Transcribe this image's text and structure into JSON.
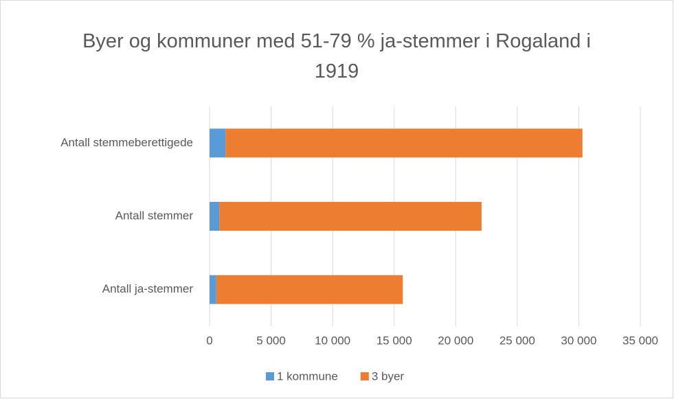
{
  "chart_data": {
    "type": "stacked_bar_horizontal",
    "title": "Byer og kommuner med 51-79 % ja-stemmer i Rogaland i 1919",
    "categories": [
      "Antall stemmeberettigede",
      "Antall stemmer",
      "Antall ja-stemmer"
    ],
    "series": [
      {
        "name": "1 kommune",
        "color": "#5b9bd5",
        "values": [
          1300,
          800,
          550
        ]
      },
      {
        "name": "3 byer",
        "color": "#ed7d31",
        "values": [
          29000,
          21300,
          15150
        ]
      }
    ],
    "xlim": [
      0,
      35000
    ],
    "xticks": [
      0,
      {
        "value": 5000,
        "label": "5 000"
      },
      {
        "value": 10000,
        "label": "10 000"
      },
      {
        "value": 15000,
        "label": "15 000"
      },
      {
        "value": 20000,
        "label": "20 000"
      },
      {
        "value": 25000,
        "label": "25 000"
      },
      {
        "value": 30000,
        "label": "30 000"
      },
      {
        "value": 35000,
        "label": "35 000"
      }
    ],
    "grid": true,
    "legend": "bottom"
  }
}
